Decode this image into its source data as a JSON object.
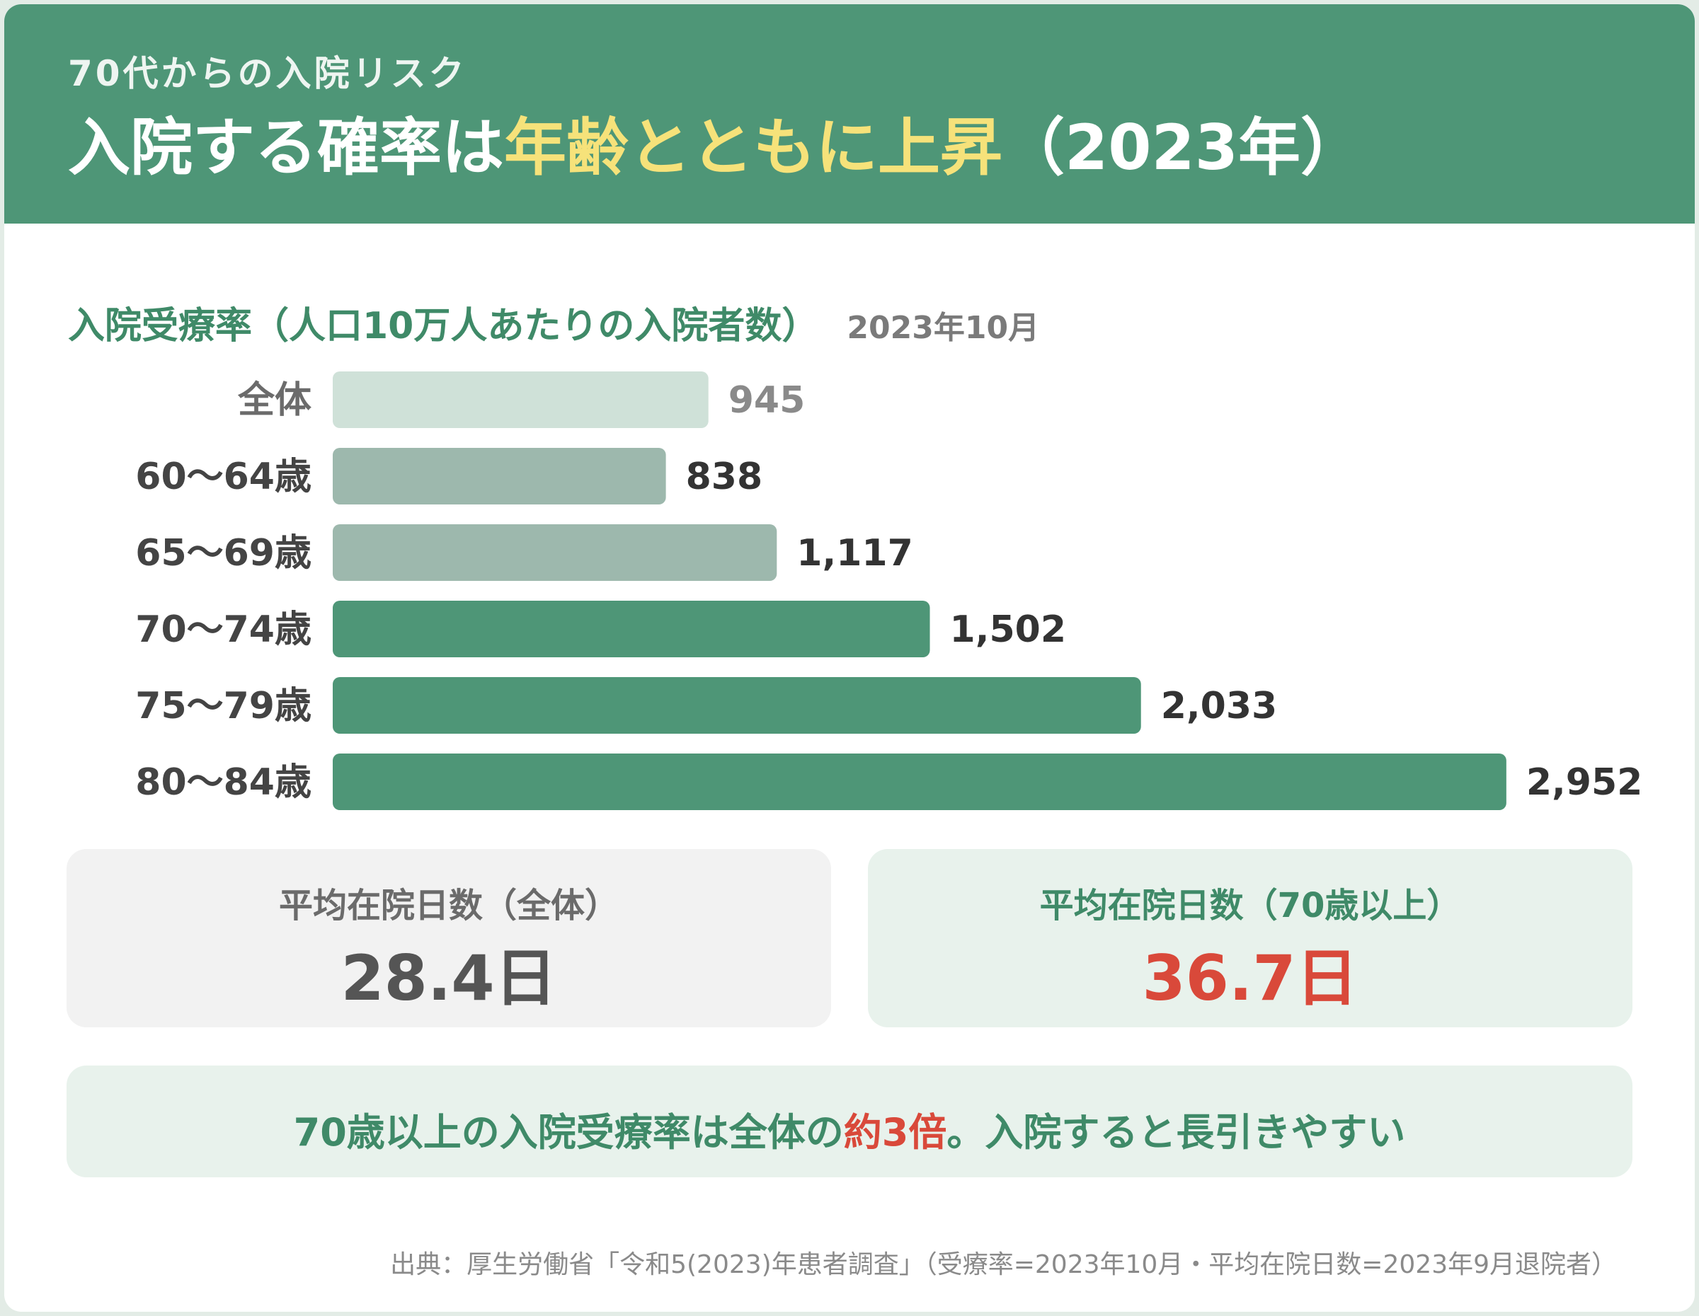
{
  "header": {
    "kicker": "70代からの入院リスク",
    "title_part1": "入院する確率は",
    "title_highlight": "年齢とともに上昇",
    "title_part2": "（2023年）"
  },
  "section": {
    "title": "入院受療率（人口10万人あたりの入院者数）",
    "date": "2023年10月"
  },
  "chart_data": {
    "type": "bar",
    "orientation": "horizontal",
    "categories": [
      "全体",
      "60～64歳",
      "65～69歳",
      "70～74歳",
      "75～79歳",
      "80～84歳"
    ],
    "values": [
      945,
      838,
      1117,
      1502,
      2033,
      2952
    ],
    "value_labels": [
      "945",
      "838",
      "1,117",
      "1,502",
      "2,033",
      "2,952"
    ],
    "bar_colors": [
      "#cfe1d8",
      "#9db8ad",
      "#9db8ad",
      "#4e9677",
      "#4e9677",
      "#4e9677"
    ],
    "label_colors": [
      "#6b6b6b",
      "#444444",
      "#444444",
      "#444444",
      "#444444",
      "#444444"
    ],
    "value_colors": [
      "#8a8a8a",
      "#333333",
      "#333333",
      "#333333",
      "#333333",
      "#333333"
    ]
  },
  "stats": {
    "overall": {
      "label": "平均在院日数（全体）",
      "value": "28.4日"
    },
    "seventy_plus": {
      "label": "平均在院日数（70歳以上）",
      "value": "36.7日"
    }
  },
  "summary": {
    "part1": "70歳以上の入院受療率は全体の",
    "emphasis": "約3倍",
    "part2": "。入院すると長引きやすい"
  },
  "source": "出典：厚生労働省「令和5(2023)年患者調査」（受療率=2023年10月・平均在院日数=2023年9月退院者）",
  "colors": {
    "brand_green": "#4e9677",
    "highlight_yellow": "#f6e27a",
    "accent_red": "#d9493a"
  }
}
